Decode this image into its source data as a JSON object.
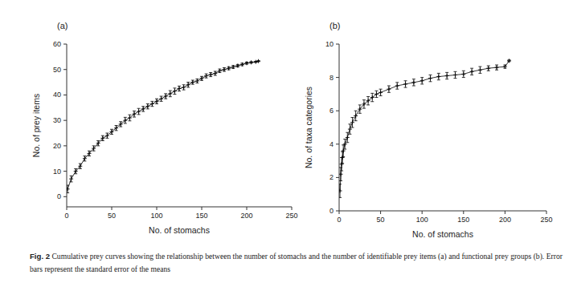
{
  "caption_label": "Fig. 2",
  "caption": "Cumulative prey curves showing the relationship between the number of stomachs and the number of identifiable prey items (a) and functional prey groups (b). Error bars represent the standard error of the means",
  "chart_data": [
    {
      "type": "scatter",
      "title": "(a)",
      "x_label": "No. of stomachs",
      "y_label": "No. of prey items",
      "xlim": [
        0,
        250
      ],
      "xticks": [
        0,
        50,
        100,
        150,
        200,
        250
      ],
      "ylim": [
        -4,
        60
      ],
      "yticks": [
        0,
        10,
        20,
        30,
        40,
        50,
        60
      ],
      "series": [
        {
          "color": "#000000",
          "marker": "cross",
          "x": [
            1,
            5,
            10,
            15,
            20,
            25,
            30,
            35,
            40,
            45,
            50,
            55,
            60,
            65,
            70,
            75,
            80,
            85,
            90,
            95,
            100,
            105,
            110,
            115,
            120,
            125,
            130,
            135,
            140,
            145,
            150,
            155,
            160,
            165,
            170,
            175,
            180,
            185,
            190,
            195,
            200,
            205,
            210,
            213
          ],
          "values": [
            3,
            7,
            10,
            12,
            15,
            17,
            19,
            21,
            23,
            24,
            25.5,
            27,
            28.5,
            30,
            31,
            32.5,
            33.5,
            34.5,
            35.5,
            36.5,
            37.5,
            38.5,
            39.5,
            40.5,
            41.5,
            42.5,
            43,
            44,
            45,
            45.5,
            46.5,
            47.5,
            48,
            48.5,
            49.5,
            50,
            50.5,
            51,
            51.5,
            52,
            52.5,
            52.8,
            53,
            53.3
          ],
          "error": [
            1.5,
            1.2,
            1.0,
            1.0,
            1.0,
            1.0,
            1.0,
            1.0,
            1.0,
            1.0,
            1.0,
            1.0,
            1.0,
            1.2,
            1.2,
            1.2,
            1.2,
            1.0,
            1.0,
            1.0,
            1.0,
            1.0,
            1.0,
            1.2,
            1.2,
            1.0,
            1.0,
            1.0,
            0.8,
            0.8,
            0.8,
            0.8,
            0.8,
            0.8,
            0.7,
            0.7,
            0.6,
            0.6,
            0.5,
            0.5,
            0.4,
            0.3,
            0.2,
            0.2
          ]
        }
      ]
    },
    {
      "type": "scatter",
      "title": "(b)",
      "x_label": "No. of stomachs",
      "y_label": "No. of taxa categories",
      "xlim": [
        0,
        250
      ],
      "xticks": [
        0,
        50,
        100,
        150,
        200,
        250
      ],
      "ylim": [
        0,
        10
      ],
      "yticks": [
        0,
        2,
        4,
        6,
        8,
        10
      ],
      "series": [
        {
          "color": "#000000",
          "marker": "cross",
          "x": [
            1,
            2,
            3,
            4,
            5,
            7,
            10,
            13,
            16,
            20,
            25,
            30,
            35,
            40,
            45,
            50,
            60,
            70,
            80,
            90,
            100,
            110,
            120,
            130,
            140,
            150,
            160,
            170,
            180,
            190,
            200,
            205
          ],
          "values": [
            1.2,
            2.2,
            2.8,
            3.2,
            3.6,
            4.0,
            4.4,
            4.9,
            5.3,
            5.7,
            6.1,
            6.4,
            6.6,
            6.8,
            7.0,
            7.1,
            7.3,
            7.5,
            7.6,
            7.7,
            7.8,
            7.95,
            8.05,
            8.1,
            8.15,
            8.2,
            8.35,
            8.45,
            8.55,
            8.6,
            8.65,
            9.0
          ],
          "error": [
            0.4,
            0.4,
            0.4,
            0.35,
            0.35,
            0.3,
            0.3,
            0.3,
            0.3,
            0.3,
            0.25,
            0.25,
            0.25,
            0.25,
            0.2,
            0.2,
            0.2,
            0.2,
            0.2,
            0.2,
            0.2,
            0.2,
            0.2,
            0.2,
            0.2,
            0.2,
            0.2,
            0.2,
            0.15,
            0.15,
            0.1,
            0.05
          ]
        }
      ]
    }
  ]
}
